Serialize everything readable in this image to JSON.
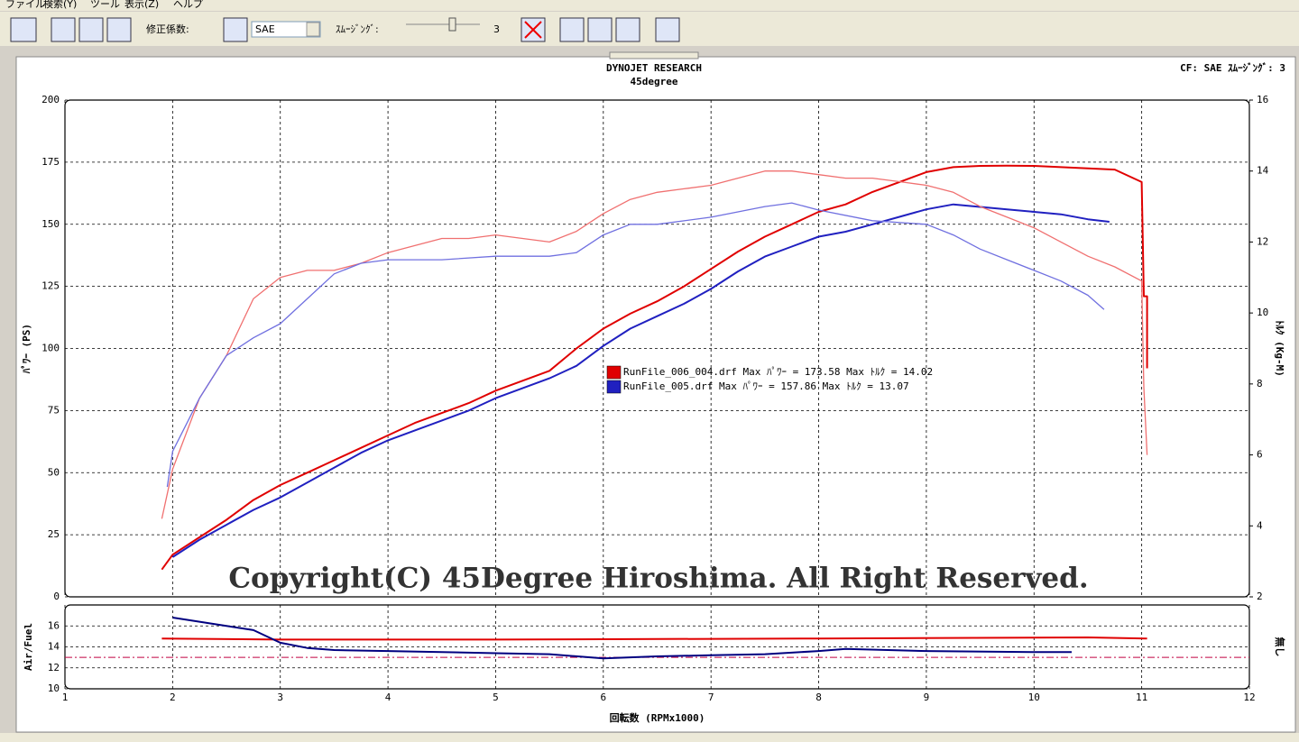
{
  "menu": [
    "ファイル",
    "検索(Y)",
    "ツール",
    "表示(Z)",
    "ヘルプ"
  ],
  "toolbar": {
    "correction_label": "修正係数:",
    "correction_value": "SAE",
    "smoothing_label": "ｽﾑｰｼﾞﾝｸﾞ:",
    "smoothing_value": "3"
  },
  "chart_data": [
    {
      "type": "line",
      "title": "DYNOJET  RESEARCH",
      "subtitle": "45degree",
      "header_right": "CF: SAE  ｽﾑｰｼﾞﾝｸﾞ: 3",
      "ylabel": "ﾊﾟﾜｰ (PS)",
      "y2label": "ﾄﾙｸ (Kg-M)",
      "xlim": [
        1,
        12
      ],
      "xticks": [
        1,
        2,
        3,
        4,
        5,
        6,
        7,
        8,
        9,
        10,
        11,
        12
      ],
      "ylim": [
        0,
        200
      ],
      "yticks": [
        0,
        25,
        50,
        75,
        100,
        125,
        150,
        175,
        200
      ],
      "y2lim": [
        2,
        16
      ],
      "y2ticks": [
        2,
        4,
        6,
        8,
        10,
        12,
        14,
        16
      ],
      "grid": true,
      "series": [
        {
          "color": "#e00000",
          "x": [
            1.9,
            2.0,
            2.25,
            2.5,
            2.75,
            3.0,
            3.25,
            3.5,
            3.75,
            4.0,
            4.25,
            4.5,
            4.75,
            5.0,
            5.25,
            5.5,
            5.75,
            6.0,
            6.25,
            6.5,
            6.75,
            7.0,
            7.25,
            7.5,
            7.75,
            8.0,
            8.25,
            8.5,
            8.75,
            9.0,
            9.25,
            9.5,
            9.75,
            10.0,
            10.25,
            10.5,
            10.75,
            11.0,
            11.02,
            11.05,
            11.05
          ],
          "values": [
            11,
            17,
            24,
            31,
            39,
            45,
            50,
            55,
            60,
            65,
            70,
            74,
            78,
            83,
            87,
            91,
            100,
            108,
            114,
            119,
            125,
            132,
            139,
            145,
            150,
            155,
            158,
            163,
            167,
            171,
            173,
            173.5,
            173.6,
            173.5,
            173,
            172.5,
            172,
            167,
            121,
            121,
            92
          ]
        },
        {
          "color": "#2020c0",
          "x": [
            2.0,
            2.25,
            2.5,
            2.75,
            3.0,
            3.25,
            3.5,
            3.75,
            4.0,
            4.25,
            4.5,
            4.75,
            5.0,
            5.25,
            5.5,
            5.75,
            6.0,
            6.25,
            6.5,
            6.75,
            7.0,
            7.25,
            7.5,
            7.75,
            8.0,
            8.25,
            8.5,
            8.75,
            9.0,
            9.25,
            9.5,
            9.75,
            10.0,
            10.25,
            10.5,
            10.7
          ],
          "values": [
            16,
            23,
            29,
            35,
            40,
            46,
            52,
            58,
            63,
            67,
            71,
            75,
            80,
            84,
            88,
            93,
            101,
            108,
            113,
            118,
            124,
            131,
            137,
            141,
            145,
            147,
            150,
            153,
            156,
            158,
            157,
            156,
            155,
            154,
            152,
            151
          ]
        },
        {
          "color": "#f07070",
          "axis": "y2",
          "x": [
            1.9,
            2.0,
            2.25,
            2.5,
            2.75,
            3.0,
            3.25,
            3.5,
            3.75,
            4.0,
            4.25,
            4.5,
            4.75,
            5.0,
            5.25,
            5.5,
            5.75,
            6.0,
            6.25,
            6.5,
            6.75,
            7.0,
            7.25,
            7.5,
            7.75,
            8.0,
            8.25,
            8.5,
            8.75,
            9.0,
            9.25,
            9.5,
            9.75,
            10.0,
            10.25,
            10.5,
            10.75,
            11.0,
            11.02,
            11.05
          ],
          "values": [
            4.2,
            5.6,
            7.6,
            8.8,
            10.4,
            11.0,
            11.2,
            11.2,
            11.4,
            11.7,
            11.9,
            12.1,
            12.1,
            12.2,
            12.1,
            12.0,
            12.3,
            12.8,
            13.2,
            13.4,
            13.5,
            13.6,
            13.8,
            14.0,
            14.0,
            13.9,
            13.8,
            13.8,
            13.7,
            13.6,
            13.4,
            13.0,
            12.7,
            12.4,
            12.0,
            11.6,
            11.3,
            10.9,
            7.9,
            6.0
          ]
        },
        {
          "color": "#7070e0",
          "axis": "y2",
          "x": [
            1.95,
            2.0,
            2.25,
            2.5,
            2.75,
            3.0,
            3.25,
            3.5,
            3.75,
            4.0,
            4.5,
            5.0,
            5.5,
            5.75,
            6.0,
            6.25,
            6.5,
            7.0,
            7.5,
            7.75,
            8.0,
            8.5,
            9.0,
            9.25,
            9.5,
            9.75,
            10.0,
            10.25,
            10.5,
            10.65
          ],
          "values": [
            5.1,
            6.1,
            7.6,
            8.8,
            9.3,
            9.7,
            10.4,
            11.1,
            11.4,
            11.5,
            11.5,
            11.6,
            11.6,
            11.7,
            12.2,
            12.5,
            12.5,
            12.7,
            13.0,
            13.1,
            12.9,
            12.6,
            12.5,
            12.2,
            11.8,
            11.5,
            11.2,
            10.9,
            10.5,
            10.1
          ]
        }
      ],
      "legend": [
        {
          "label": "RunFile_006_004.drf Max ﾊﾟﾜｰ = 173.58   Max ﾄﾙｸ = 14.02",
          "color": "#e00000"
        },
        {
          "label": "RunFile_005.drf Max ﾊﾟﾜｰ = 157.86   Max ﾄﾙｸ = 13.07",
          "color": "#2020c0"
        }
      ],
      "annotation": "Copyright(C) 45Degree Hiroshima. All Right Reserved."
    },
    {
      "type": "line",
      "ylabel": "Air/Fuel",
      "y2label": "無し",
      "xlabel": "回転数 (RPMx1000)",
      "xlim": [
        1,
        12
      ],
      "xticks": [
        1,
        2,
        3,
        4,
        5,
        6,
        7,
        8,
        9,
        10,
        11,
        12
      ],
      "ylim": [
        10,
        18
      ],
      "yticks": [
        10,
        12,
        14,
        16
      ],
      "grid": true,
      "hline": 13,
      "hline_color": "#c00040",
      "series": [
        {
          "color": "#e00000",
          "x": [
            1.9,
            3.0,
            5.0,
            8.0,
            10.5,
            11.05
          ],
          "values": [
            14.8,
            14.7,
            14.7,
            14.8,
            14.9,
            14.8
          ]
        },
        {
          "color": "#000080",
          "x": [
            2.0,
            2.5,
            2.75,
            3.0,
            3.25,
            3.5,
            4.0,
            5.0,
            5.5,
            6.0,
            6.5,
            7.0,
            7.5,
            8.0,
            8.25,
            9.0,
            10.0,
            10.35
          ],
          "values": [
            16.8,
            16.0,
            15.6,
            14.4,
            13.9,
            13.7,
            13.6,
            13.4,
            13.3,
            12.9,
            13.1,
            13.2,
            13.3,
            13.6,
            13.8,
            13.6,
            13.5,
            13.5
          ]
        }
      ]
    }
  ]
}
